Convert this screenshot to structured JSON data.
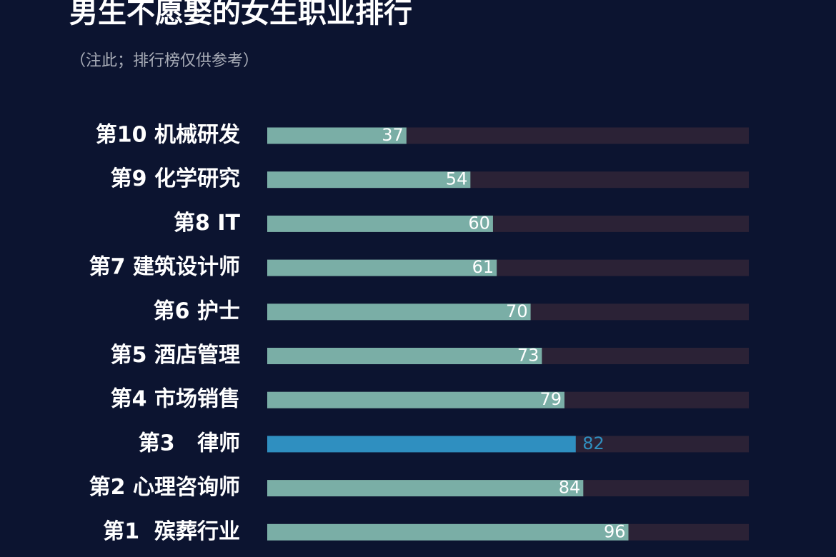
{
  "chart_data": {
    "type": "hbar",
    "title": "男生不愿娶的女生职业排行",
    "subtitle": "（注此；排行榜仅供参考）",
    "categories": [
      "第10 机械研发",
      "第9 化学研究",
      "第8 IT",
      "第7 建筑设计师",
      "第6 护士",
      "第5 酒店管理",
      "第4 市场销售",
      "第3   律师",
      "第2 心理咨询师",
      "第1  殡葬行业"
    ],
    "values": [
      37,
      54,
      60,
      61,
      70,
      73,
      79,
      82,
      84,
      96
    ],
    "color": "#7aaea6",
    "colors": [
      "#7aaea6",
      "#7aaea6",
      "#7aaea6",
      "#7aaea6",
      "#7aaea6",
      "#7aaea6",
      "#7aaea6",
      "#2f8fc0",
      "#7aaea6",
      "#7aaea6"
    ],
    "track_color": "#2b2236",
    "xlim": [
      0,
      128
    ]
  }
}
